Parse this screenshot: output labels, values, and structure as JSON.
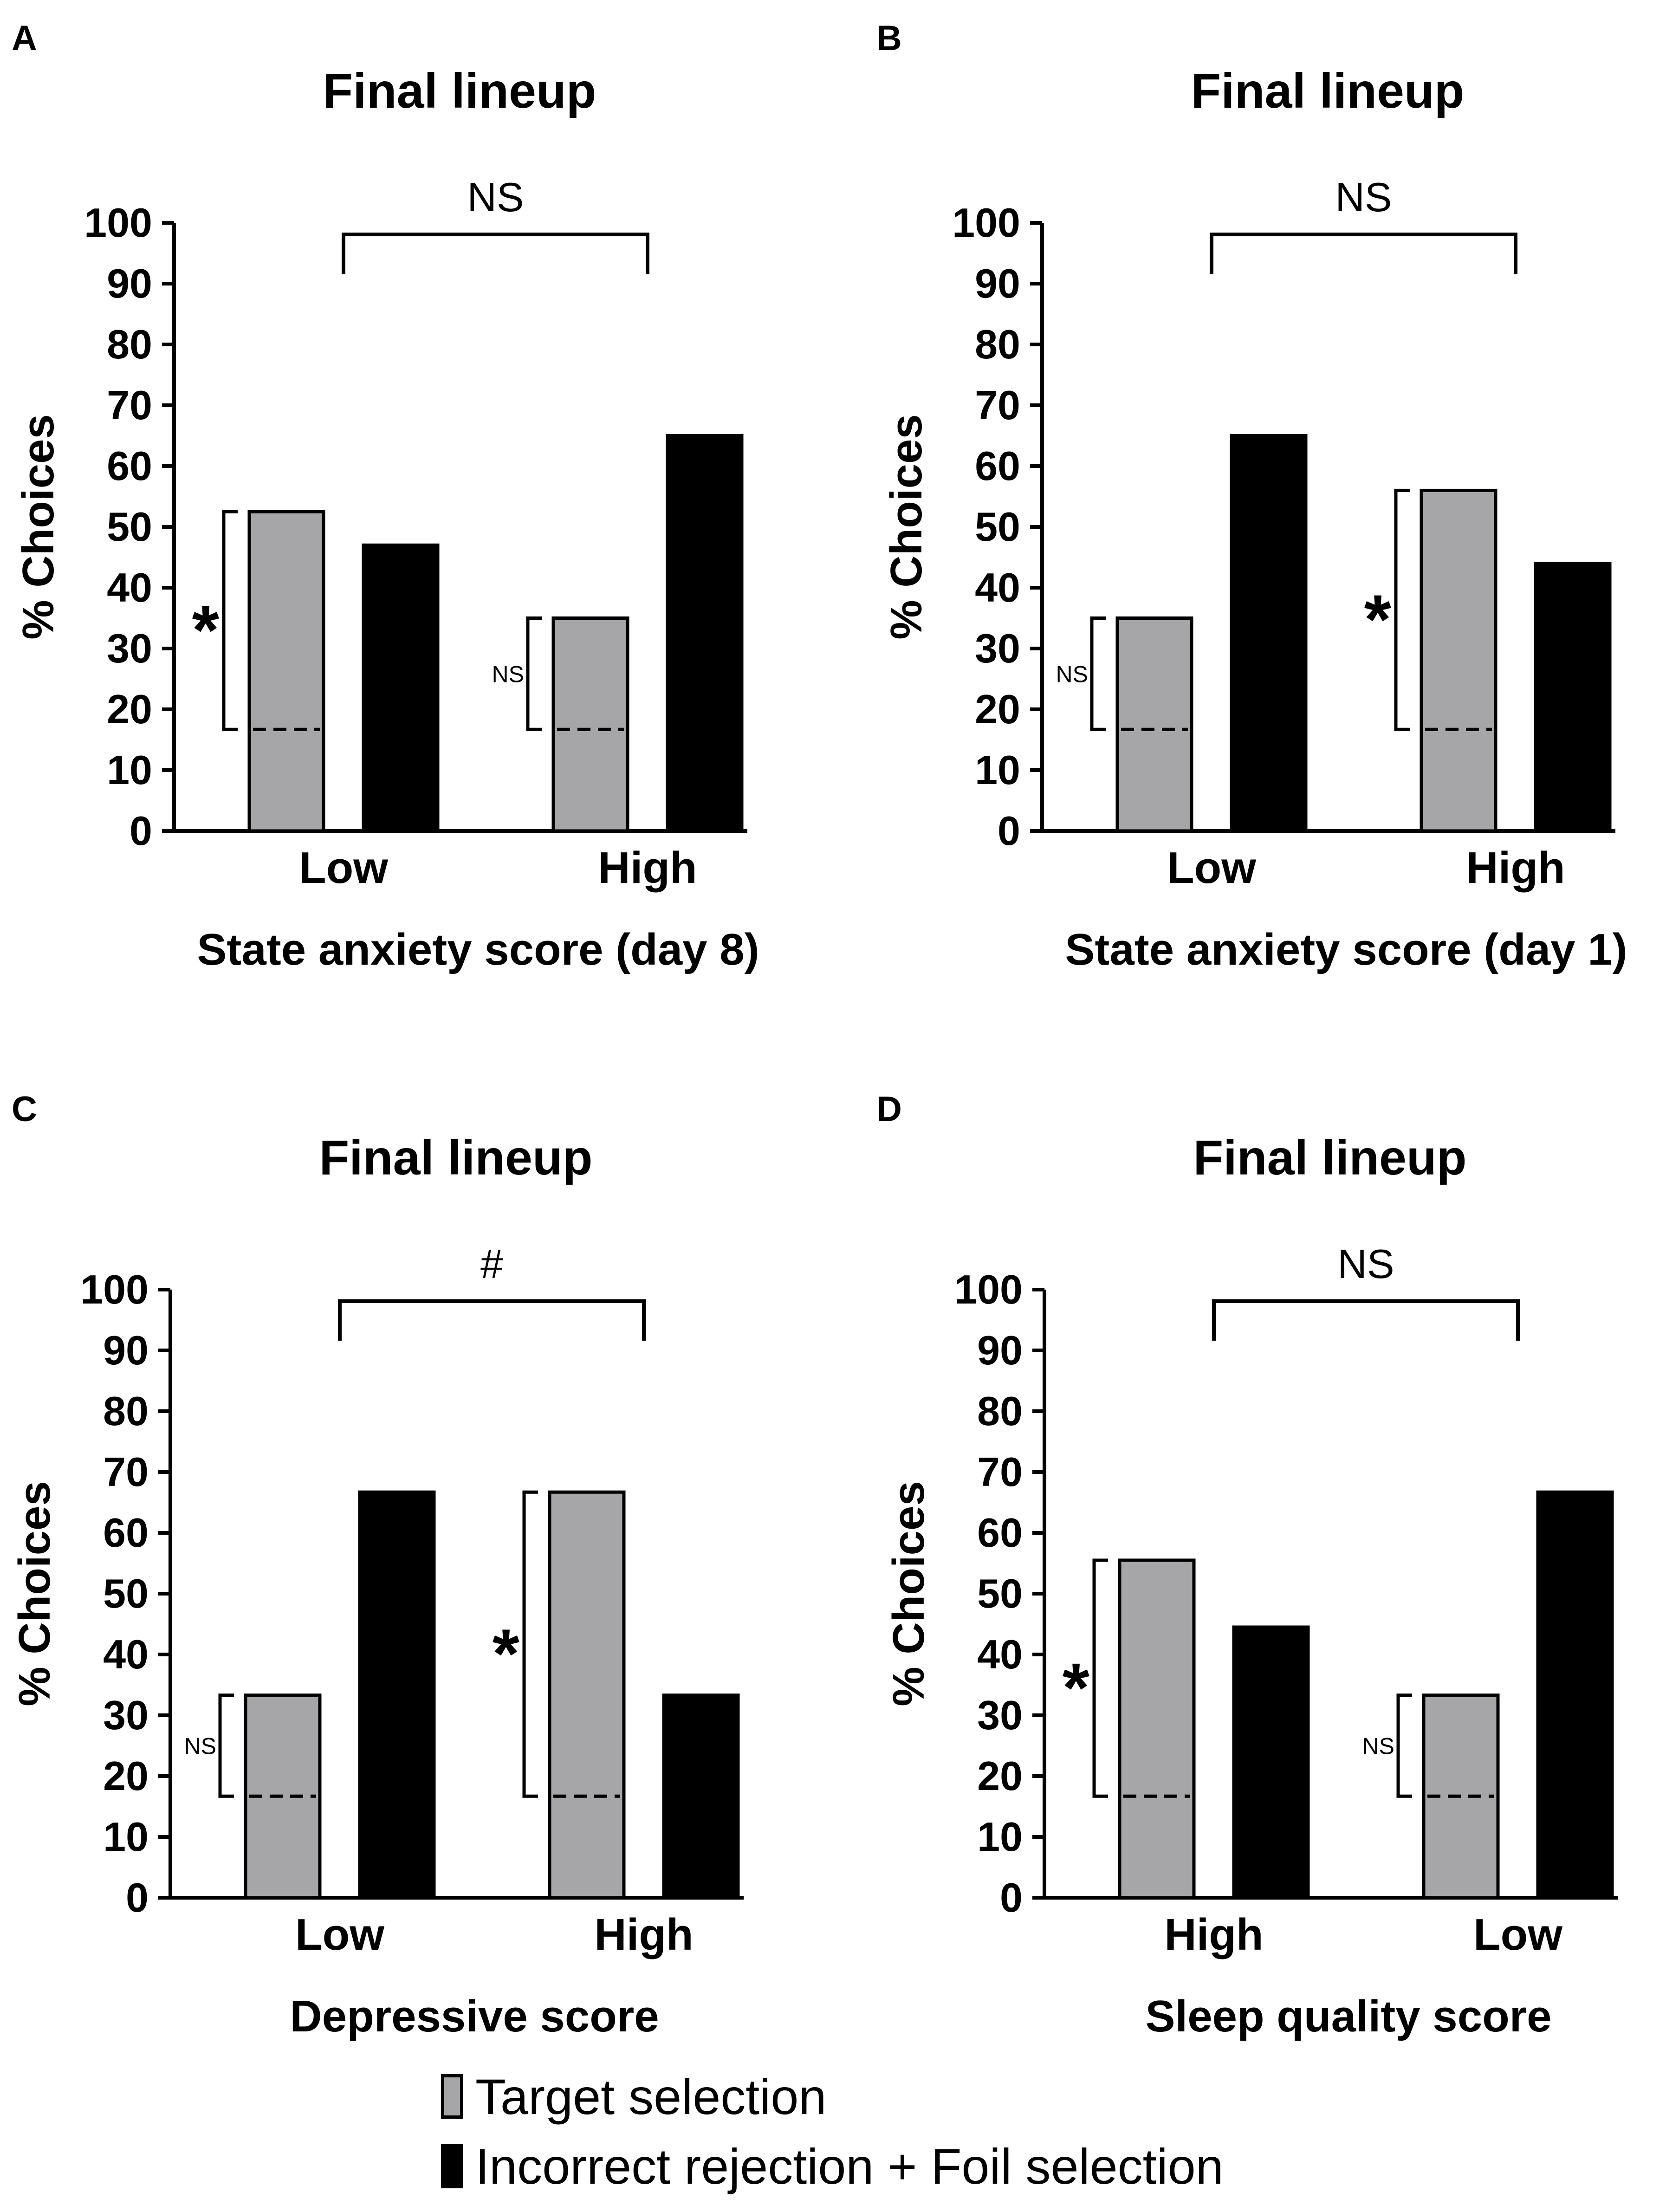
{
  "colors": {
    "target": "#a6a6a8",
    "incorrect": "#000000",
    "axis": "#000000"
  },
  "legend": {
    "target_label": "Target selection",
    "incorrect_label": "Incorrect rejection + Foil selection"
  },
  "chart_data": [
    {
      "panel": "A",
      "type": "bar",
      "title": "Final lineup",
      "xlabel": "State anxiety score  (day 8)",
      "ylabel": "% Choices",
      "ylim": [
        0,
        100
      ],
      "yticks": [
        "0",
        "10",
        "20",
        "30",
        "40",
        "50",
        "60",
        "70",
        "80",
        "90",
        "100"
      ],
      "chance_level": 16.7,
      "categories": [
        "Low",
        "High"
      ],
      "series": [
        {
          "name": "Target selection",
          "values": [
            52.5,
            35
          ]
        },
        {
          "name": "Incorrect rejection + Foil selection",
          "values": [
            47,
            65
          ]
        }
      ],
      "group_significance": [
        "*",
        "NS"
      ],
      "comparison_label": "NS"
    },
    {
      "panel": "B",
      "type": "bar",
      "title": "Final lineup",
      "xlabel": "State anxiety score  (day 1)",
      "ylabel": "% Choices",
      "ylim": [
        0,
        100
      ],
      "yticks": [
        "0",
        "10",
        "20",
        "30",
        "40",
        "50",
        "60",
        "70",
        "80",
        "90",
        "100"
      ],
      "chance_level": 16.7,
      "categories": [
        "Low",
        "High"
      ],
      "series": [
        {
          "name": "Target selection",
          "values": [
            35,
            56
          ]
        },
        {
          "name": "Incorrect rejection + Foil selection",
          "values": [
            65,
            44
          ]
        }
      ],
      "group_significance": [
        "NS",
        "*"
      ],
      "comparison_label": "NS"
    },
    {
      "panel": "C",
      "type": "bar",
      "title": "Final lineup",
      "xlabel": "Depressive score",
      "ylabel": "% Choices",
      "ylim": [
        0,
        100
      ],
      "yticks": [
        "0",
        "10",
        "20",
        "30",
        "40",
        "50",
        "60",
        "70",
        "80",
        "90",
        "100"
      ],
      "chance_level": 16.7,
      "categories": [
        "Low",
        "High"
      ],
      "series": [
        {
          "name": "Target selection",
          "values": [
            33.3,
            66.7
          ]
        },
        {
          "name": "Incorrect rejection + Foil selection",
          "values": [
            66.7,
            33.3
          ]
        }
      ],
      "group_significance": [
        "NS",
        "*"
      ],
      "comparison_label": "#"
    },
    {
      "panel": "D",
      "type": "bar",
      "title": "Final lineup",
      "xlabel": "Sleep quality score",
      "ylabel": "% Choices",
      "ylim": [
        0,
        100
      ],
      "yticks": [
        "0",
        "10",
        "20",
        "30",
        "40",
        "50",
        "60",
        "70",
        "80",
        "90",
        "100"
      ],
      "chance_level": 16.7,
      "categories": [
        "High",
        "Low"
      ],
      "series": [
        {
          "name": "Target selection",
          "values": [
            55.5,
            33.3
          ]
        },
        {
          "name": "Incorrect rejection + Foil selection",
          "values": [
            44.5,
            66.7
          ]
        }
      ],
      "group_significance": [
        "*",
        "NS"
      ],
      "comparison_label": "NS"
    }
  ]
}
